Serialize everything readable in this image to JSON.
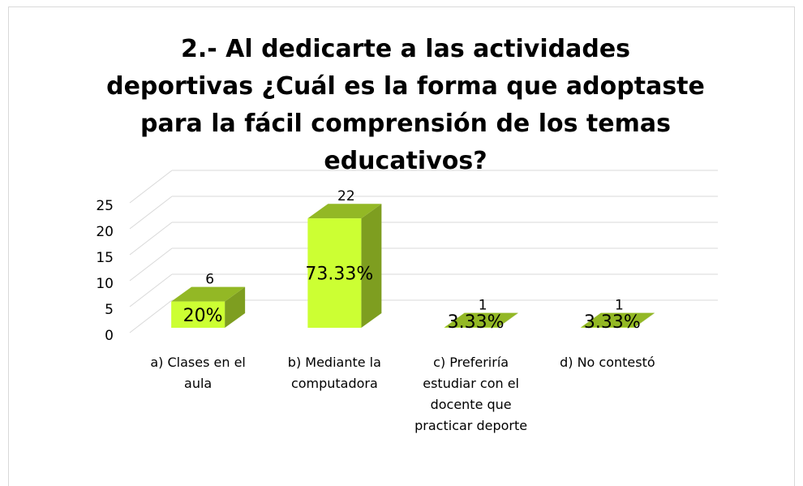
{
  "chart_data": {
    "type": "bar3d",
    "title": "2.- Al dedicarte a las actividades deportivas ¿Cuál es la forma que adoptaste para la fácil comprensión de  los temas educativos?",
    "categories": [
      "a) Clases en el aula",
      "b) Mediante la computadora",
      "c) Preferiría estudiar con el docente que practicar deporte",
      "d) No contestó"
    ],
    "values": [
      6,
      22,
      1,
      1
    ],
    "percent_labels": [
      "20%",
      "73.33%",
      "3.33%",
      "3.33%"
    ],
    "color": "#ccff33",
    "ylim": [
      0,
      25
    ],
    "yticks": [
      0,
      5,
      10,
      15,
      20,
      25
    ],
    "grid": true
  }
}
